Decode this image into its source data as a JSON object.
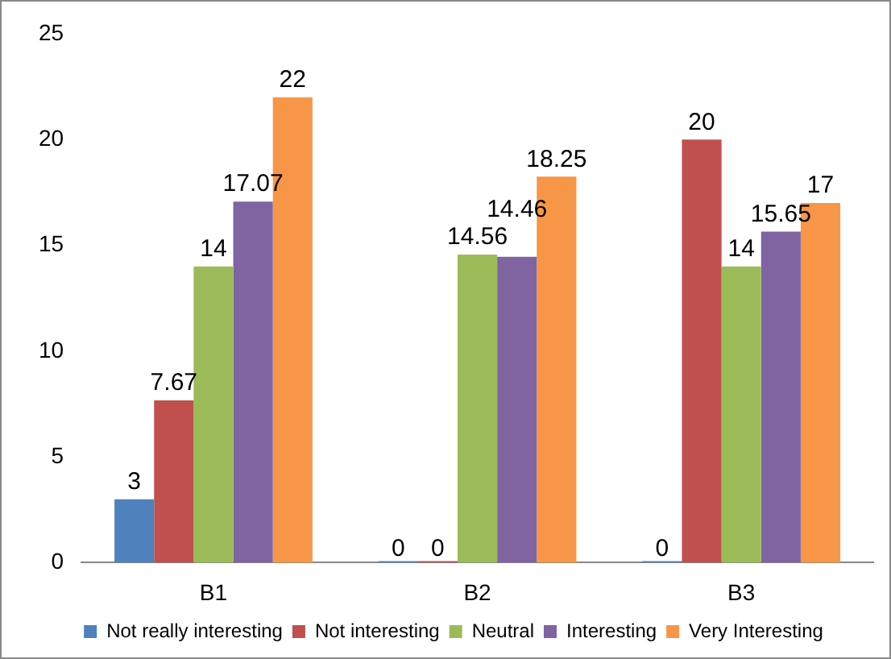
{
  "chart_data": {
    "type": "bar",
    "categories": [
      "B1",
      "B2",
      "B3"
    ],
    "series": [
      {
        "name": "Not really interesting",
        "color": "#4f81bd",
        "values": [
          3,
          0,
          0
        ]
      },
      {
        "name": "Not interesting",
        "color": "#c0504d",
        "values": [
          7.67,
          0,
          20
        ]
      },
      {
        "name": "Neutral",
        "color": "#9bbb59",
        "values": [
          14,
          14.56,
          14
        ]
      },
      {
        "name": "Interesting",
        "color": "#8064a2",
        "values": [
          17.07,
          14.46,
          15.65
        ]
      },
      {
        "name": "Very Interesting",
        "color": "#f79646",
        "values": [
          22,
          18.25,
          17
        ]
      }
    ],
    "ylim": [
      0,
      25
    ],
    "yticks": [
      0,
      5,
      10,
      15,
      20,
      25
    ],
    "grid": false,
    "legend": "bottom",
    "data_labels": true
  }
}
